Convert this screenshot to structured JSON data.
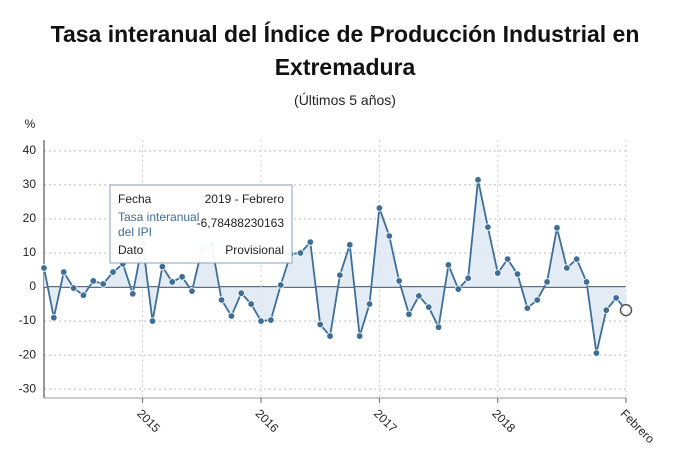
{
  "chart_data": {
    "type": "line",
    "title": "Tasa interanual del Índice de Producción Industrial en Extremadura",
    "subtitle": "(Últimos 5 años)",
    "y_label": "%",
    "categories": [
      null,
      null,
      null,
      null,
      null,
      null,
      null,
      null,
      null,
      null,
      "2015",
      null,
      null,
      null,
      null,
      null,
      null,
      null,
      null,
      null,
      null,
      null,
      "2016",
      null,
      null,
      null,
      null,
      null,
      null,
      null,
      null,
      null,
      null,
      null,
      "2017",
      null,
      null,
      null,
      null,
      null,
      null,
      null,
      null,
      null,
      null,
      null,
      "2018",
      null,
      null,
      null,
      null,
      null,
      null,
      null,
      null,
      null,
      null,
      null,
      null,
      "Febrero"
    ],
    "series": [
      {
        "name": "Tasa interanual del IPI",
        "color": "#3d6e97",
        "values": [
          5.6,
          -9,
          4.4,
          -0.3,
          -2.4,
          1.8,
          0.9,
          4.4,
          6.8,
          -2,
          13,
          -10,
          6,
          1.5,
          3,
          -1.2,
          11,
          12.4,
          -3.8,
          -8.5,
          -1.8,
          -5,
          -10,
          -9.7,
          0.6,
          9.7,
          10,
          13.2,
          -11,
          -14.4,
          3.5,
          12.4,
          -14.4,
          -5,
          23.2,
          15,
          1.8,
          -8,
          -2.6,
          -5.9,
          -11.8,
          6.5,
          -0.6,
          2.6,
          31.5,
          17.6,
          4.1,
          8.2,
          3.8,
          -6.2,
          -3.8,
          1.5,
          17.4,
          5.6,
          8.2,
          1.5,
          -19.4,
          -6.8,
          -3.2,
          -6.78488230163
        ]
      }
    ],
    "ylim": [
      -32.6,
      43.2
    ],
    "yticks": [
      -30,
      -20,
      -10,
      0,
      10,
      20,
      30,
      40
    ],
    "grid": true,
    "area_fill": "#dce7f2",
    "tooltip": {
      "rows": [
        {
          "label": "Fecha",
          "value": "2019 - Febrero"
        },
        {
          "label": "Tasa interanual del IPI",
          "value": "-6,78488230163"
        },
        {
          "label": "Dato",
          "value": "Provisional"
        }
      ]
    }
  }
}
